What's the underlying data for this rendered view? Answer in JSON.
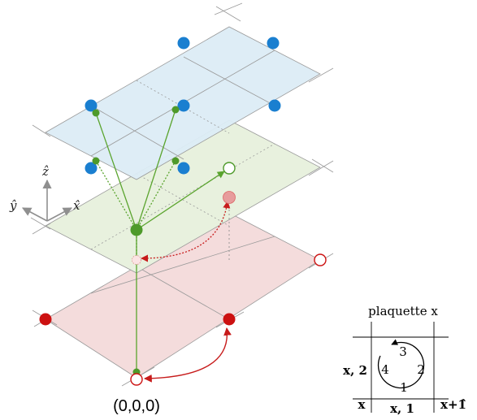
{
  "colors": {
    "blue_plane": "#dcecf6",
    "green_plane": "#e8f1de",
    "red_plane": "#f4dcdc",
    "blue_dot": "#1a7fd0",
    "green_dot": "#4e9a2a",
    "green_line": "#5aa42e",
    "red_dot": "#cc1111",
    "red_line": "#c71b1b",
    "grid_line": "#8c8c8c",
    "axis_gray": "#8f8f8f"
  },
  "axes": {
    "z_label": "ẑ",
    "y_label": "ŷ",
    "x_label": "x̂"
  },
  "origin_label": "(0,0,0)",
  "plaquette": {
    "title": "plaquette x",
    "left_edge": "x, 2",
    "bottom_edge": "x, 1",
    "bottom_left": "x",
    "bottom_right": "x+1̂",
    "n1": "1",
    "n2": "2",
    "n3": "3",
    "n4": "4"
  }
}
